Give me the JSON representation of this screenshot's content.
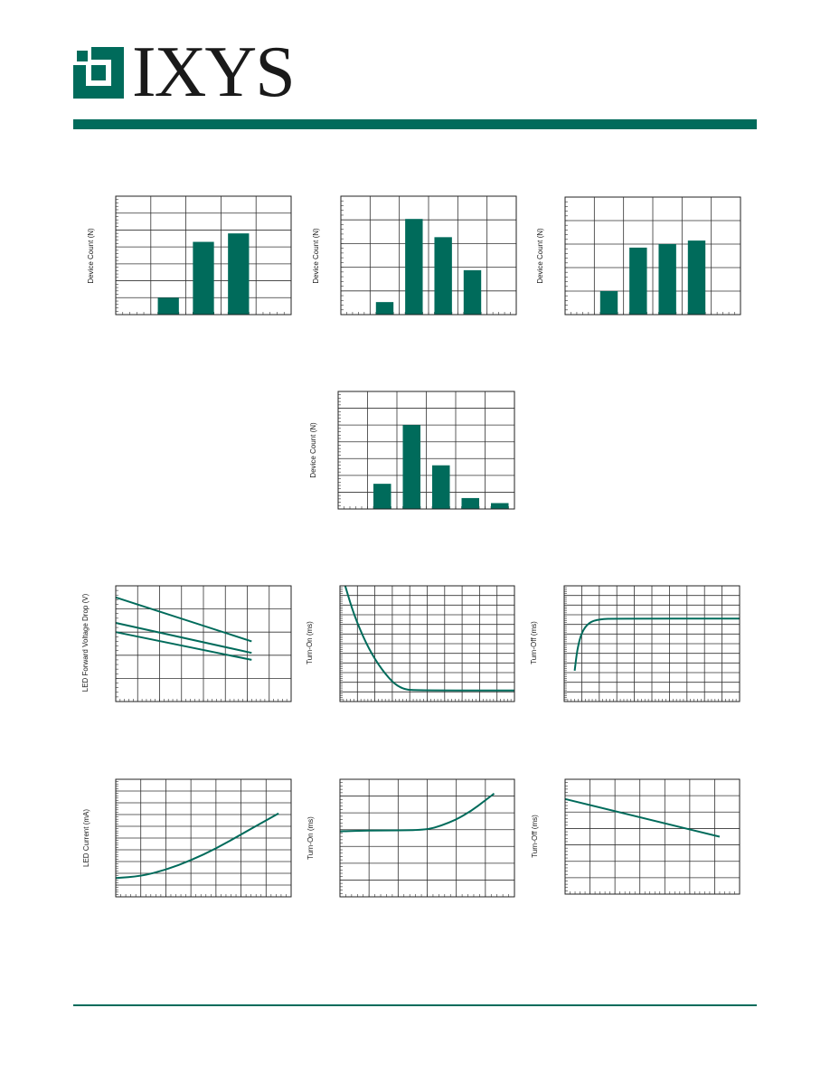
{
  "header": {
    "logo_text": "IXYS",
    "brand_color": "#006b5b"
  },
  "chart_data": [
    {
      "id": "c1",
      "type": "bar",
      "ylabel": "Device Count (N)",
      "grid": "5x7",
      "values": [
        0,
        1,
        4.3,
        4.8,
        0
      ],
      "ymax": 7
    },
    {
      "id": "c2",
      "type": "bar",
      "ylabel": "Device Count (N)",
      "grid": "6x5",
      "values": [
        0,
        0.55,
        4.2,
        3.4,
        1.95,
        0
      ],
      "ymax": 5.2
    },
    {
      "id": "c3",
      "type": "bar",
      "ylabel": "Device Count (N)",
      "grid": "6x5",
      "values": [
        0,
        1,
        2.85,
        3,
        3.15,
        0
      ],
      "ymax": 5
    },
    {
      "id": "c4",
      "type": "bar",
      "ylabel": "Device Count (N)",
      "grid": "6x7",
      "values": [
        0,
        1.5,
        5,
        2.6,
        0.65,
        0.35
      ],
      "ymax": 7
    },
    {
      "id": "c5",
      "type": "line",
      "ylabel": "LED Forward Voltage Drop (V)",
      "grid": "8x5",
      "xlim": [
        0,
        8
      ],
      "ylim": [
        0,
        5
      ],
      "series": [
        {
          "points": [
            [
              0,
              4.5
            ],
            [
              6.2,
              2.6
            ]
          ]
        },
        {
          "points": [
            [
              0,
              3.4
            ],
            [
              6.2,
              2.1
            ]
          ]
        },
        {
          "points": [
            [
              0,
              3
            ],
            [
              6.2,
              1.8
            ]
          ]
        }
      ]
    },
    {
      "id": "c6",
      "type": "line",
      "ylabel": "Turn-On (ms)",
      "grid": "10x12",
      "xlim": [
        0,
        10
      ],
      "ylim": [
        0,
        12
      ],
      "series": [
        {
          "points": [
            [
              0.3,
              12
            ],
            [
              0.8,
              9
            ],
            [
              1.5,
              6
            ],
            [
              2.2,
              3.8
            ],
            [
              3,
              2
            ],
            [
              3.6,
              1.3
            ],
            [
              4.2,
              1.15
            ],
            [
              10,
              1.15
            ]
          ]
        }
      ]
    },
    {
      "id": "c7",
      "type": "line",
      "ylabel": "Turn-Off (ms)",
      "grid": "10x12",
      "xlim": [
        0,
        10
      ],
      "ylim": [
        0,
        12
      ],
      "series": [
        {
          "points": [
            [
              0.6,
              3.2
            ],
            [
              0.75,
              5.5
            ],
            [
              1,
              7.2
            ],
            [
              1.4,
              8.2
            ],
            [
              2,
              8.55
            ],
            [
              3,
              8.6
            ],
            [
              10,
              8.6
            ]
          ]
        }
      ]
    },
    {
      "id": "c8",
      "type": "line",
      "ylabel": "LED Current (mA)",
      "grid": "7x10",
      "xlim": [
        0,
        7
      ],
      "ylim": [
        0,
        10
      ],
      "series": [
        {
          "points": [
            [
              0,
              1.6
            ],
            [
              1,
              1.75
            ],
            [
              2,
              2.3
            ],
            [
              3,
              3.1
            ],
            [
              4,
              4.1
            ],
            [
              5,
              5.3
            ],
            [
              6,
              6.5
            ],
            [
              6.5,
              7.1
            ]
          ]
        }
      ]
    },
    {
      "id": "c9",
      "type": "line",
      "ylabel": "Turn-On (ms)",
      "grid": "6x7",
      "xlim": [
        0,
        6
      ],
      "ylim": [
        0,
        7
      ],
      "series": [
        {
          "points": [
            [
              0,
              3.9
            ],
            [
              1,
              3.95
            ],
            [
              2,
              3.95
            ],
            [
              3,
              4
            ],
            [
              3.5,
              4.25
            ],
            [
              4,
              4.6
            ],
            [
              4.5,
              5.1
            ],
            [
              5,
              5.75
            ],
            [
              5.3,
              6.15
            ]
          ]
        }
      ]
    },
    {
      "id": "c10",
      "type": "line",
      "ylabel": "Turn-Off (ms)",
      "grid": "7x7",
      "xlim": [
        0,
        7
      ],
      "ylim": [
        0,
        7
      ],
      "series": [
        {
          "points": [
            [
              0,
              5.8
            ],
            [
              6.2,
              3.5
            ]
          ]
        }
      ]
    }
  ]
}
